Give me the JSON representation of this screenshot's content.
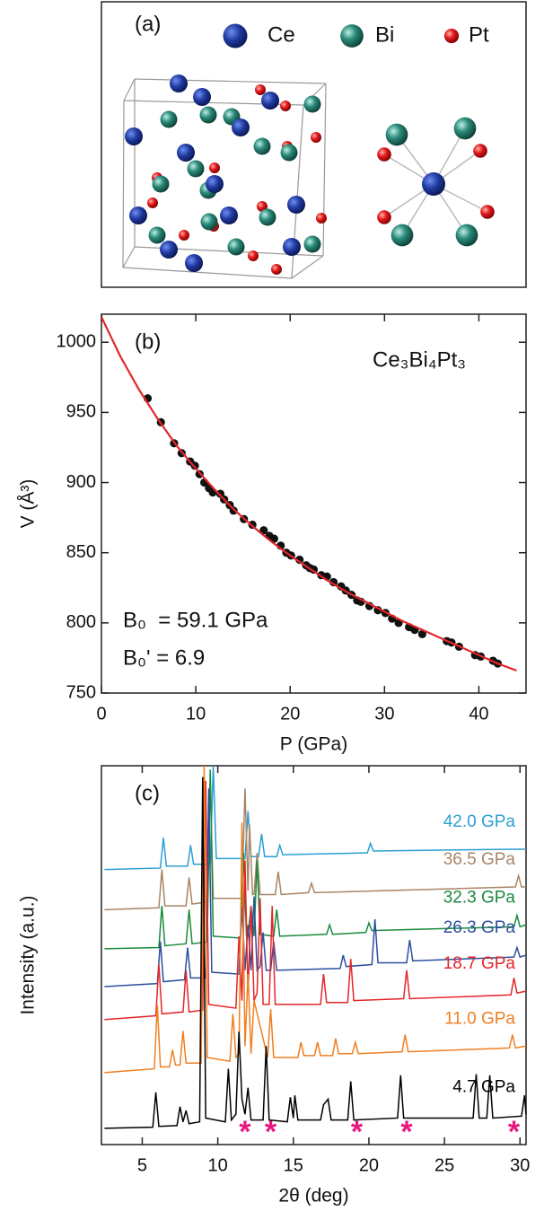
{
  "structure": {
    "label": "(a)",
    "legend": [
      {
        "name": "Ce",
        "color": "#1f3aa0"
      },
      {
        "name": "Bi",
        "color": "#2a8a7a"
      },
      {
        "name": "Pt",
        "color": "#e31a1c"
      }
    ]
  },
  "chart_data": [
    {
      "type": "scatter",
      "label": "(b)",
      "formula": "Ce₃Bi₄Pt₃",
      "annotations": [
        "B₀  = 59.1 GPa",
        "B₀' = 6.9"
      ],
      "xlabel": "P (GPa)",
      "ylabel": "V (Å³)",
      "xlim": [
        0,
        45
      ],
      "ylim": [
        750,
        1020
      ],
      "xticks": [
        0,
        10,
        20,
        30,
        40
      ],
      "yticks": [
        750,
        800,
        850,
        900,
        950,
        1000
      ],
      "series": [
        {
          "color": "#111111",
          "style": "markers",
          "x": [
            4.9,
            6.3,
            7.7,
            8.5,
            9.4,
            9.9,
            10.4,
            10.9,
            11.4,
            11.8,
            12.6,
            13.0,
            13.6,
            14.0,
            15.1,
            16.0,
            17.2,
            17.8,
            18.3,
            19.0,
            19.6,
            20.1,
            21.0,
            21.7,
            22.1,
            22.5,
            23.3,
            23.9,
            24.6,
            25.4,
            25.9,
            26.5,
            27.1,
            27.5,
            28.4,
            29.3,
            30.1,
            30.8,
            31.5,
            32.6,
            33.2,
            34.0,
            36.6,
            37.1,
            37.9,
            39.6,
            40.2,
            41.5,
            42.0
          ],
          "values": [
            960,
            943,
            928,
            921,
            915,
            912,
            906,
            900,
            896,
            893,
            892,
            888,
            884,
            880,
            874,
            870,
            866,
            862,
            860,
            855,
            850,
            848,
            845,
            841,
            839,
            838,
            834,
            833,
            829,
            826,
            823,
            820,
            816,
            815,
            812,
            809,
            807,
            803,
            800,
            797,
            795,
            792,
            787,
            786,
            783,
            777,
            776,
            773,
            771
          ]
        },
        {
          "color": "#e3262b",
          "style": "line",
          "x": [
            0,
            2,
            4,
            6,
            8,
            10,
            12,
            14,
            16,
            18,
            20,
            22,
            24,
            26,
            28,
            30,
            32,
            34,
            36,
            38,
            40,
            42,
            44
          ],
          "values": [
            1018,
            990,
            966,
            945,
            926,
            910,
            895,
            881,
            869,
            858,
            848,
            839,
            830,
            822,
            815,
            808,
            801,
            795,
            789,
            783,
            777,
            771,
            766
          ]
        }
      ]
    },
    {
      "type": "line",
      "label": "(c)",
      "xlabel": "2θ (deg)",
      "ylabel": "Intensity (a.u.)",
      "xlim": [
        2.3,
        30.4
      ],
      "ylim": [
        0,
        100
      ],
      "xticks": [
        5,
        10,
        15,
        20,
        25,
        30
      ],
      "markers": {
        "label": "*",
        "color": "#e8177f",
        "x": [
          11.8,
          13.5,
          19.2,
          22.5,
          29.6
        ]
      },
      "series": [
        {
          "name": "42.0 GPa",
          "color": "#2b9fd3",
          "x": [
            2.5,
            6.2,
            6.4,
            6.6,
            8.0,
            8.2,
            8.4,
            9.5,
            9.7,
            9.9,
            11.8,
            12.0,
            12.2,
            12.7,
            12.9,
            13.1,
            13.9,
            14.1,
            14.3,
            19.9,
            20.1,
            20.3,
            30.4
          ],
          "values": [
            72.6,
            73,
            81,
            73.5,
            73.5,
            79,
            74,
            74,
            100,
            75.5,
            75.5,
            88,
            76,
            76,
            82,
            76,
            76,
            79,
            76.5,
            77,
            79.5,
            77.5,
            78
          ]
        },
        {
          "name": "36.5 GPa",
          "color": "#a88566",
          "x": [
            2.5,
            6.1,
            6.3,
            6.5,
            7.9,
            8.1,
            8.3,
            9.3,
            9.5,
            9.7,
            11.6,
            11.8,
            12.0,
            12.1,
            12.3,
            12.4,
            12.6,
            12.8,
            13.8,
            14.0,
            14.2,
            16.0,
            16.2,
            16.4,
            29.7,
            29.9,
            30.1,
            30.4
          ],
          "values": [
            62,
            62.5,
            72.6,
            63,
            63,
            70.5,
            63.5,
            64,
            96,
            65,
            65,
            94,
            67,
            84.5,
            66,
            66,
            77,
            66,
            66,
            72,
            66,
            66.5,
            69,
            66.5,
            68,
            71,
            68,
            68
          ]
        },
        {
          "name": "32.3 GPa",
          "color": "#1b8a3e",
          "x": [
            2.5,
            6.1,
            6.3,
            6.5,
            7.9,
            8.1,
            8.3,
            9.3,
            9.5,
            9.7,
            11.5,
            11.7,
            11.9,
            12.0,
            12.2,
            12.4,
            12.6,
            12.8,
            13.7,
            13.9,
            14.1,
            17.2,
            17.4,
            17.6,
            19.8,
            20.0,
            20.2,
            29.6,
            29.8,
            30.0,
            30.4
          ],
          "values": [
            51.7,
            52,
            63,
            52.5,
            53,
            62,
            53,
            53.5,
            99,
            55,
            54.5,
            77,
            55,
            55,
            63,
            55,
            75,
            55.5,
            55,
            62,
            55,
            55.5,
            58,
            55.5,
            56,
            58.5,
            56.5,
            57.5,
            60.5,
            57.5,
            58
          ]
        },
        {
          "name": "26.3 GPa",
          "color": "#2c4f9e",
          "x": [
            2.5,
            6.0,
            6.2,
            6.4,
            7.8,
            8.0,
            8.2,
            9.2,
            9.4,
            9.6,
            11.4,
            11.6,
            11.8,
            12.0,
            12.2,
            12.4,
            12.6,
            12.8,
            13.0,
            13.2,
            13.5,
            13.7,
            13.9,
            18.1,
            18.3,
            18.5,
            20.2,
            20.4,
            20.6,
            22.5,
            22.7,
            22.9,
            29.6,
            29.8,
            30.0,
            30.4
          ],
          "values": [
            41.7,
            42.5,
            53.6,
            43,
            43.5,
            52,
            44,
            44,
            94,
            45.5,
            45,
            63,
            46,
            58,
            46,
            65.5,
            46,
            47,
            56,
            46,
            46,
            53.6,
            46,
            46.5,
            50,
            47,
            47.5,
            59.5,
            48,
            48,
            54,
            48.5,
            49.5,
            52,
            49.5,
            50
          ]
        },
        {
          "name": "18.7 GPa",
          "color": "#e2262b",
          "x": [
            2.5,
            5.9,
            6.1,
            6.3,
            7.7,
            7.9,
            8.1,
            9.0,
            9.2,
            9.4,
            11.2,
            11.4,
            11.6,
            11.8,
            12.0,
            12.2,
            12.4,
            12.6,
            12.8,
            13.0,
            13.4,
            13.6,
            13.8,
            16.8,
            17.0,
            17.2,
            18.6,
            18.8,
            19.0,
            22.3,
            22.5,
            22.7,
            29.4,
            29.6,
            29.8,
            30.4
          ],
          "values": [
            33,
            34,
            47.6,
            34.5,
            35,
            46,
            35,
            35.5,
            96,
            37,
            36,
            55,
            38,
            75,
            40,
            63,
            38,
            40,
            65,
            37,
            37,
            63,
            37,
            37,
            45,
            37.5,
            37.5,
            49,
            38,
            38.5,
            46,
            38.5,
            39.5,
            44,
            40,
            40.5
          ]
        },
        {
          "name": "11.0 GPa",
          "color": "#f07f22",
          "x": [
            2.5,
            5.8,
            6.0,
            6.2,
            6.8,
            7.0,
            7.2,
            7.5,
            7.7,
            7.9,
            8.9,
            9.1,
            9.3,
            10.8,
            11.0,
            11.2,
            11.4,
            11.6,
            11.8,
            12.0,
            12.2,
            12.4,
            13.3,
            13.5,
            13.7,
            15.3,
            15.5,
            15.7,
            16.4,
            16.6,
            16.8,
            17.6,
            17.8,
            18.0,
            18.9,
            19.1,
            19.3,
            22.2,
            22.4,
            22.6,
            29.3,
            29.5,
            29.7,
            30.4
          ],
          "values": [
            19,
            20,
            37,
            20.5,
            20.5,
            25,
            21,
            21,
            30,
            21.5,
            21.5,
            100,
            23,
            22,
            34.5,
            23,
            24,
            85,
            26,
            45,
            24,
            38,
            23,
            35.7,
            23,
            23,
            27,
            23.5,
            23.5,
            27,
            23.5,
            23.5,
            28,
            24,
            24,
            27,
            24,
            24.5,
            29,
            24.5,
            25.5,
            29,
            25.5,
            26
          ]
        },
        {
          "name": "4.7 GPa",
          "color": "#000000",
          "x": [
            2.5,
            5.7,
            5.9,
            6.1,
            7.3,
            7.5,
            7.7,
            7.9,
            8.1,
            8.8,
            9.0,
            9.2,
            10.5,
            10.7,
            10.9,
            11.2,
            11.4,
            11.6,
            11.8,
            12.0,
            12.2,
            13.0,
            13.2,
            13.4,
            14.6,
            14.8,
            15.0,
            15.1,
            15.3,
            16.8,
            17.0,
            17.3,
            17.5,
            18.6,
            18.8,
            19.0,
            21.9,
            22.1,
            22.3,
            26.9,
            27.1,
            27.3,
            27.8,
            28.0,
            28.2,
            30.1,
            30.3,
            30.4
          ],
          "values": [
            4.3,
            4.6,
            13.8,
            4.8,
            5,
            10,
            6,
            9,
            5.5,
            6,
            97,
            7,
            6,
            20,
            6.5,
            8,
            29.8,
            12,
            8,
            15,
            6.5,
            6.5,
            26,
            6.5,
            6,
            12.5,
            7,
            13,
            6.5,
            6.5,
            10.5,
            12,
            6.5,
            6.5,
            16.7,
            6.5,
            7,
            18.3,
            7,
            7,
            18.6,
            7,
            7,
            18.3,
            7,
            7.5,
            13,
            8
          ]
        }
      ]
    }
  ]
}
